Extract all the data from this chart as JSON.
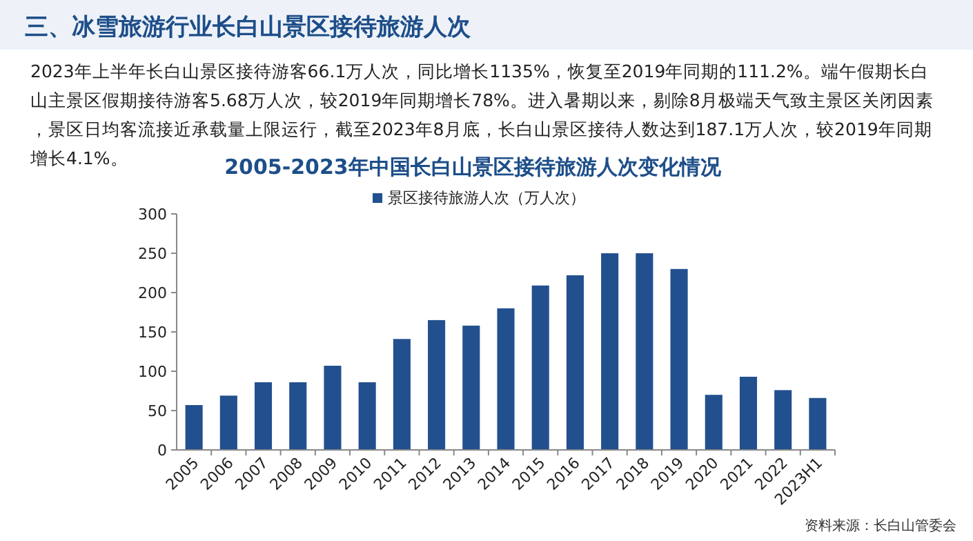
{
  "chart_data": {
    "type": "bar",
    "title": "三、冰雪旅游行业长白山景区接待旅游人次",
    "subtitle": "2005-2023年中国长白山景区接待旅游人次变化情况",
    "annotations": [
      "2023年上半年长白山景区接待游客66.1万人次，同比增长1135%，恢复至2019年同期的111.2%。端午假期长白山主景区假期接待游客5.68万人次，较2019年同期增长78%。进入暑期以来，剔除8月极端天气致主景区关闭因素，景区日均客流接近承载量上限运行，截至2023年8月底，长白山景区接待人数达到187.1万人次，较2019年同期增长4.1%。",
      "资料来源：长白山管委会"
    ],
    "categories": [
      "2005",
      "2006",
      "2007",
      "2008",
      "2009",
      "2010",
      "2011",
      "2012",
      "2013",
      "2014",
      "2015",
      "2016",
      "2017",
      "2018",
      "2019",
      "2020",
      "2021",
      "2022",
      "2023H1"
    ],
    "series": [
      {
        "name": "景区接待旅游人次（万人次）",
        "color": "#22508f",
        "values": [
          57,
          69,
          86,
          86,
          107,
          86,
          141,
          165,
          158,
          180,
          209,
          222,
          250,
          250,
          230,
          70,
          93,
          76,
          66
        ]
      }
    ],
    "ylim": [
      0,
      300
    ],
    "yticks": [
      0,
      50,
      100,
      150,
      200,
      250,
      300
    ],
    "grid": false,
    "legend": "top"
  }
}
